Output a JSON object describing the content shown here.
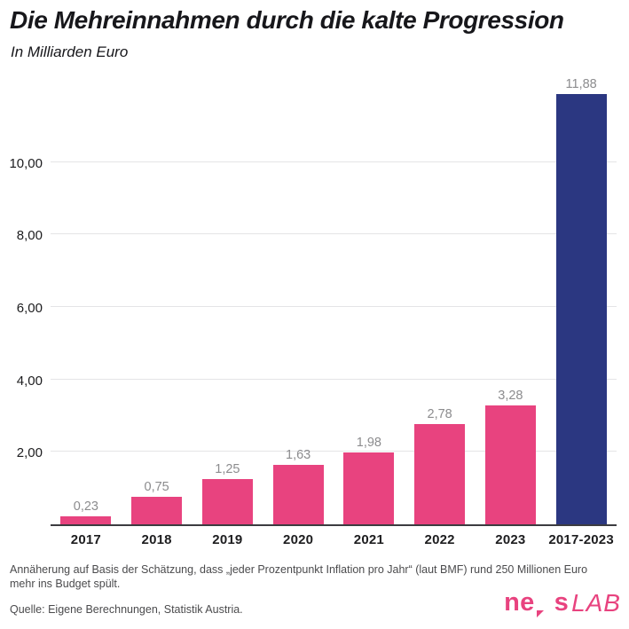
{
  "header": {
    "title": "Die Mehreinnahmen durch die kalte Progression",
    "subtitle": "In Milliarden Euro"
  },
  "chart_data": {
    "type": "bar",
    "title": "Die Mehreinnahmen durch die kalte Progression",
    "subtitle": "In Milliarden Euro",
    "xlabel": "",
    "ylabel": "Milliarden Euro",
    "categories": [
      "2017",
      "2018",
      "2019",
      "2020",
      "2021",
      "2022",
      "2023",
      "2017-2023"
    ],
    "values": [
      0.23,
      0.75,
      1.25,
      1.63,
      1.98,
      2.78,
      3.28,
      11.88
    ],
    "value_labels": [
      "0,23",
      "0,75",
      "1,25",
      "1,63",
      "1,98",
      "2,78",
      "3,28",
      "11,88"
    ],
    "colors": [
      "#E8437F",
      "#E8437F",
      "#E8437F",
      "#E8437F",
      "#E8437F",
      "#E8437F",
      "#E8437F",
      "#2B3781"
    ],
    "ylim": [
      0,
      12.2
    ],
    "yticks": [
      {
        "value": 2,
        "label": "2,00"
      },
      {
        "value": 4,
        "label": "4,00"
      },
      {
        "value": 6,
        "label": "6,00"
      },
      {
        "value": 8,
        "label": "8,00"
      },
      {
        "value": 10,
        "label": "10,00"
      }
    ],
    "grid": "horizontal",
    "legend": "none"
  },
  "footer": {
    "footnote": "Annäherung auf Basis der Schätzung, dass „jeder Prozentpunkt Inflation pro Jahr“ (laut BMF) rund 250 Millionen Euro mehr ins Budget spült.",
    "source": "Quelle: Eigene Berechnungen, Statistik Austria."
  },
  "logo": {
    "prefix": "ne",
    "suffix": "s",
    "lab": "LAB",
    "color": "#E8437F"
  },
  "colors": {
    "bar_pink": "#E8437F",
    "bar_navy": "#2B3781",
    "gridline": "#e4e4e6",
    "axis_line": "#3c3c40",
    "value_label": "#8c8c8e",
    "text_dark": "#17171b",
    "footnote_gray": "#4b4b4d"
  }
}
